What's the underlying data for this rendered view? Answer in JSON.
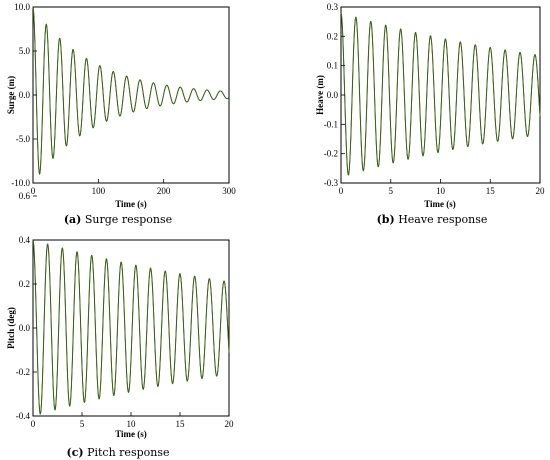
{
  "charts": [
    {
      "id": "surge",
      "caption_letter": "(a)",
      "caption_text": "Surge response",
      "chart_data": {
        "type": "line",
        "xlabel": "Time (s)",
        "ylabel": "Surge (m)",
        "xlim": [
          0,
          300
        ],
        "ylim": [
          -10,
          10
        ],
        "xticks": [
          "0",
          "100",
          "200",
          "300"
        ],
        "yticks": [
          "-10.0",
          "-5.0",
          "0.0",
          "5.0",
          "10.0"
        ],
        "grid": false,
        "signal": {
          "model": "damped_oscillation",
          "amplitude_start": 10.0,
          "amplitude_end": 0.4,
          "period": 20.5,
          "phase": "cos",
          "offset": 0.0
        },
        "colors": [
          "#8b1a1a",
          "#2b6e14"
        ]
      }
    },
    {
      "id": "heave",
      "caption_letter": "(b)",
      "caption_text": "Heave response",
      "chart_data": {
        "type": "line",
        "xlabel": "Time (s)",
        "ylabel": "Heave (m)",
        "xlim": [
          0,
          20
        ],
        "ylim": [
          -0.3,
          0.3
        ],
        "xticks": [
          "0",
          "5",
          "10",
          "15",
          "20"
        ],
        "yticks": [
          "-0.3",
          "-0.2",
          "-0.1",
          "0.0",
          "0.1",
          "0.2",
          "0.3"
        ],
        "grid": false,
        "signal": {
          "model": "damped_oscillation",
          "amplitude_start": 0.28,
          "amplitude_end": 0.135,
          "period": 1.5,
          "phase": "cos",
          "offset": 0.0
        },
        "colors": [
          "#8b1a1a",
          "#2b6e14"
        ]
      }
    },
    {
      "id": "pitch",
      "caption_letter": "(c)",
      "caption_text": "Pitch response",
      "chart_data": {
        "type": "line",
        "xlabel": "Time (s)",
        "ylabel": "Pitch (deg)",
        "xlim": [
          0,
          20
        ],
        "ylim": [
          -0.4,
          0.4
        ],
        "xticks": [
          "0",
          "5",
          "10",
          "15",
          "20"
        ],
        "yticks": [
          "-0.4",
          "-0.2",
          "0.0",
          "0.2",
          "0.4",
          "0.6"
        ],
        "grid": false,
        "signal": {
          "model": "damped_oscillation",
          "amplitude_start": 0.4,
          "amplitude_end": 0.21,
          "period": 1.5,
          "phase": "cos",
          "offset": 0.0
        },
        "colors": [
          "#8b1a1a",
          "#2b6e14"
        ]
      }
    }
  ]
}
